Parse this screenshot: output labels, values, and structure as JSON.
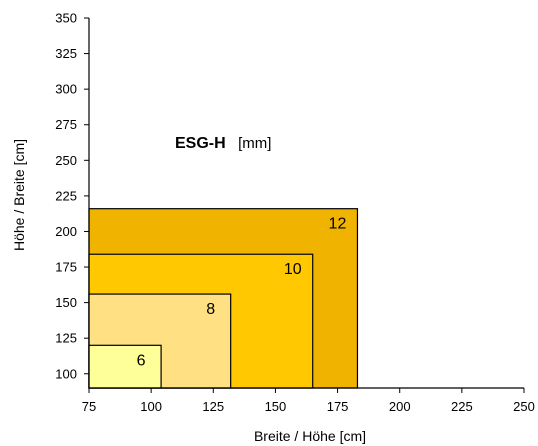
{
  "chart_data": {
    "type": "area",
    "xlabel": "Breite / Höhe [cm]",
    "ylabel": "Höhe / Breite [cm]",
    "xlim": [
      75,
      250
    ],
    "ylim": [
      90,
      350
    ],
    "x_ticks": [
      75,
      100,
      125,
      150,
      175,
      200,
      225,
      250
    ],
    "y_ticks": [
      100,
      125,
      150,
      175,
      200,
      225,
      250,
      275,
      300,
      325,
      350
    ],
    "annotation": {
      "bold": "ESG-H",
      "unit": "[mm]"
    },
    "series": [
      {
        "name": "12",
        "x_max": 183,
        "y_max": 216,
        "color": "#f0b400"
      },
      {
        "name": "10",
        "x_max": 165,
        "y_max": 184,
        "color": "#ffc800"
      },
      {
        "name": "8",
        "x_max": 132,
        "y_max": 156,
        "color": "#ffe082"
      },
      {
        "name": "6",
        "x_max": 104,
        "y_max": 120,
        "color": "#ffff99"
      }
    ]
  }
}
